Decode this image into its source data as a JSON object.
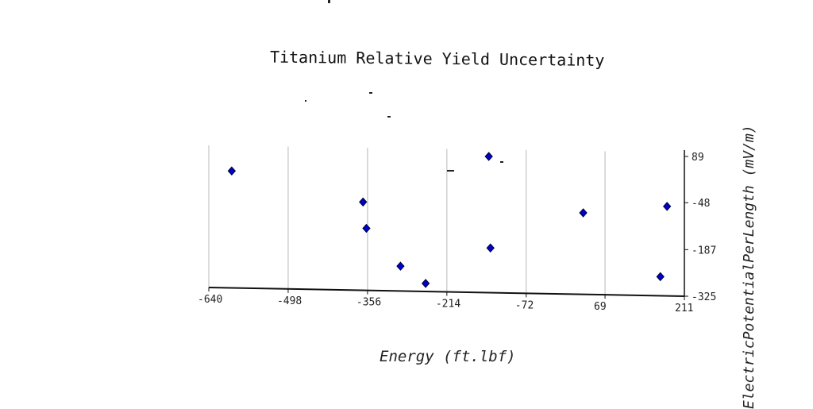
{
  "chart_data": {
    "type": "scatter",
    "title": "Titanium Relative Yield Uncertainty",
    "xlabel": "Energy (ft.lbf)",
    "ylabel": "ElectricPotentialPerLength (mV/m)",
    "xlim": [
      -640,
      211
    ],
    "ylim": [
      -325,
      89
    ],
    "xticks": [
      "-640",
      "-498",
      "-356",
      "-214",
      "-72",
      "69",
      "211"
    ],
    "yticks": [
      "89",
      "-48",
      "-187",
      "-325"
    ],
    "x_grid": true,
    "y_grid": false,
    "yaxis_position": "right",
    "marker": "diamond",
    "marker_color": "#0000cc",
    "x": [
      -599,
      -364,
      -358,
      -297,
      -252,
      -139,
      -136,
      30,
      168,
      180
    ],
    "y": [
      46,
      -46,
      -124,
      -236,
      -287,
      89,
      -182,
      -78,
      -267,
      -59
    ]
  }
}
